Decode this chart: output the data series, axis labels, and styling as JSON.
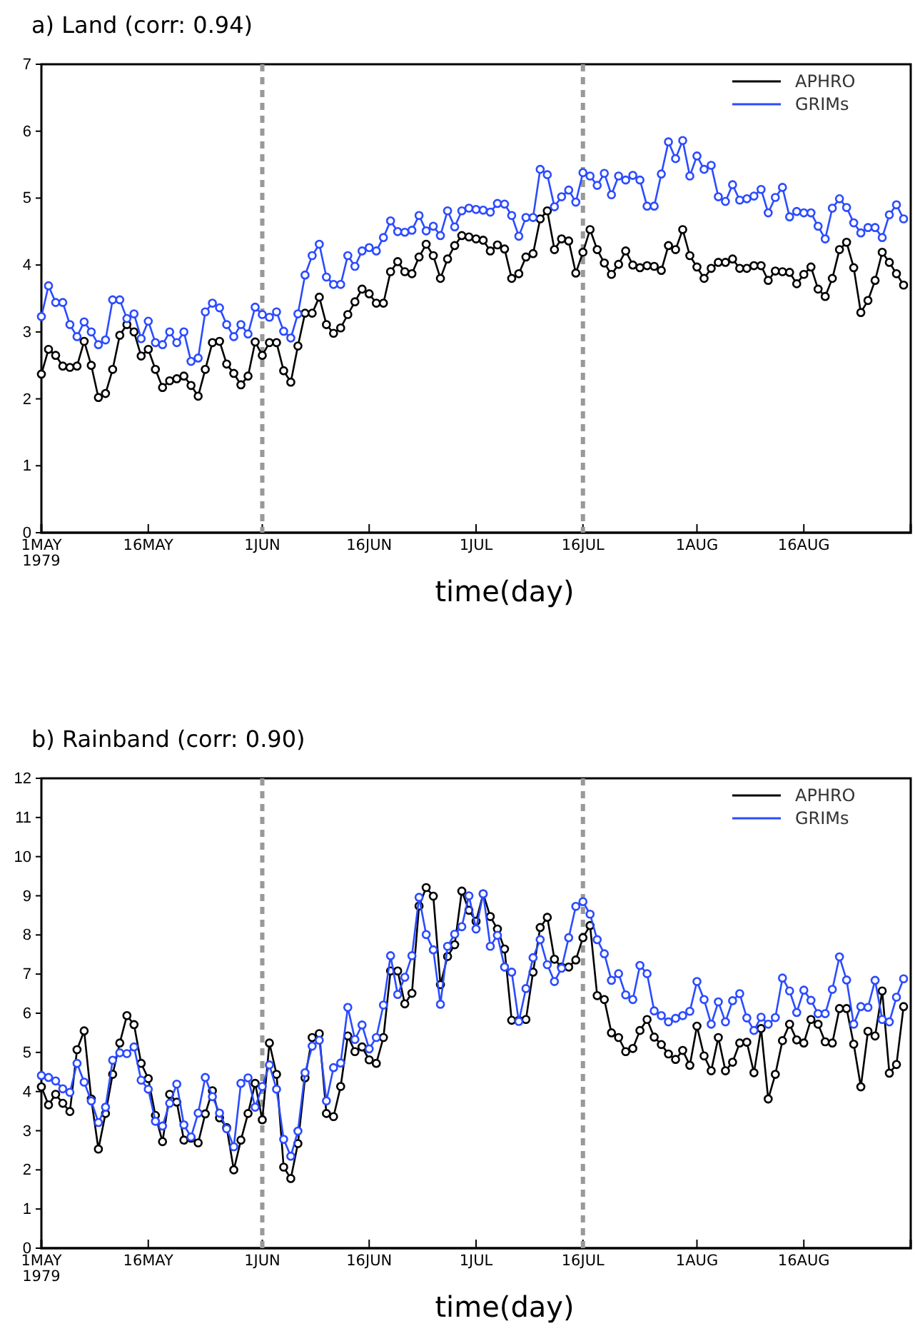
{
  "chart_data": [
    {
      "type": "line",
      "title": "a) Land (corr: 0.94)",
      "xlabel": "time(day)",
      "x": [
        "1979-05-01",
        "1979-05-02",
        "1979-05-03",
        "1979-05-04",
        "1979-05-05",
        "1979-05-06",
        "1979-05-07",
        "1979-05-08",
        "1979-05-09",
        "1979-05-10",
        "1979-05-11",
        "1979-05-12",
        "1979-05-13",
        "1979-05-14",
        "1979-05-15",
        "1979-05-16",
        "1979-05-17",
        "1979-05-18",
        "1979-05-19",
        "1979-05-20",
        "1979-05-21",
        "1979-05-22",
        "1979-05-23",
        "1979-05-24",
        "1979-05-25",
        "1979-05-26",
        "1979-05-27",
        "1979-05-28",
        "1979-05-29",
        "1979-05-30",
        "1979-05-31",
        "1979-06-01",
        "1979-06-02",
        "1979-06-03",
        "1979-06-04",
        "1979-06-05",
        "1979-06-06",
        "1979-06-07",
        "1979-06-08",
        "1979-06-09",
        "1979-06-10",
        "1979-06-11",
        "1979-06-12",
        "1979-06-13",
        "1979-06-14",
        "1979-06-15",
        "1979-06-16",
        "1979-06-17",
        "1979-06-18",
        "1979-06-19",
        "1979-06-20",
        "1979-06-21",
        "1979-06-22",
        "1979-06-23",
        "1979-06-24",
        "1979-06-25",
        "1979-06-26",
        "1979-06-27",
        "1979-06-28",
        "1979-06-29",
        "1979-06-30",
        "1979-07-01",
        "1979-07-02",
        "1979-07-03",
        "1979-07-04",
        "1979-07-05",
        "1979-07-06",
        "1979-07-07",
        "1979-07-08",
        "1979-07-09",
        "1979-07-10",
        "1979-07-11",
        "1979-07-12",
        "1979-07-13",
        "1979-07-14",
        "1979-07-15",
        "1979-07-16",
        "1979-07-17",
        "1979-07-18",
        "1979-07-19",
        "1979-07-20",
        "1979-07-21",
        "1979-07-22",
        "1979-07-23",
        "1979-07-24",
        "1979-07-25",
        "1979-07-26",
        "1979-07-27",
        "1979-07-28",
        "1979-07-29",
        "1979-07-30",
        "1979-07-31",
        "1979-08-01",
        "1979-08-02",
        "1979-08-03",
        "1979-08-04",
        "1979-08-05",
        "1979-08-06",
        "1979-08-07",
        "1979-08-08",
        "1979-08-09",
        "1979-08-10",
        "1979-08-11",
        "1979-08-12",
        "1979-08-13",
        "1979-08-14",
        "1979-08-15",
        "1979-08-16",
        "1979-08-17",
        "1979-08-18",
        "1979-08-19",
        "1979-08-20",
        "1979-08-21",
        "1979-08-22",
        "1979-08-23",
        "1979-08-24",
        "1979-08-25",
        "1979-08-26",
        "1979-08-27",
        "1979-08-28",
        "1979-08-29",
        "1979-08-30"
      ],
      "xlim": [
        "1979-05-01",
        "1979-08-31"
      ],
      "xticks": [
        {
          "value": "1979-05-01",
          "label": "1MAY\n1979"
        },
        {
          "value": "1979-05-16",
          "label": "16MAY"
        },
        {
          "value": "1979-06-01",
          "label": "1JUN"
        },
        {
          "value": "1979-06-16",
          "label": "16JUN"
        },
        {
          "value": "1979-07-01",
          "label": "1JUL"
        },
        {
          "value": "1979-07-16",
          "label": "16JUL"
        },
        {
          "value": "1979-08-01",
          "label": "1AUG"
        },
        {
          "value": "1979-08-16",
          "label": "16AUG"
        }
      ],
      "ylim": [
        0,
        7
      ],
      "yticks": [
        0,
        1,
        2,
        3,
        4,
        5,
        6,
        7
      ],
      "marker": "circle",
      "line_style": "solid",
      "legend": "top right",
      "ref_lines": [
        {
          "axis": "x",
          "value": "1979-06-01",
          "color": "#999999",
          "line_style": "dashed"
        },
        {
          "axis": "x",
          "value": "1979-07-16",
          "color": "#999999",
          "line_style": "dashed"
        }
      ],
      "series": [
        {
          "name": "APHRO",
          "color": "#000000",
          "values": [
            2.37,
            2.74,
            2.65,
            2.49,
            2.47,
            2.49,
            2.86,
            2.5,
            2.02,
            2.08,
            2.44,
            2.95,
            3.11,
            3.0,
            2.64,
            2.74,
            2.44,
            2.17,
            2.27,
            2.3,
            2.34,
            2.2,
            2.04,
            2.44,
            2.84,
            2.86,
            2.52,
            2.38,
            2.21,
            2.34,
            2.85,
            2.65,
            2.84,
            2.84,
            2.42,
            2.25,
            2.79,
            3.28,
            3.28,
            3.52,
            3.11,
            2.98,
            3.06,
            3.26,
            3.45,
            3.64,
            3.57,
            3.43,
            3.43,
            3.9,
            4.05,
            3.9,
            3.87,
            4.12,
            4.31,
            4.14,
            3.8,
            4.09,
            4.29,
            4.44,
            4.42,
            4.39,
            4.37,
            4.21,
            4.3,
            4.24,
            3.8,
            3.87,
            4.12,
            4.17,
            4.69,
            4.81,
            4.23,
            4.39,
            4.36,
            3.88,
            4.19,
            4.53,
            4.23,
            4.03,
            3.86,
            4.01,
            4.21,
            4.0,
            3.96,
            3.99,
            3.98,
            3.92,
            4.29,
            4.23,
            4.53,
            4.14,
            3.97,
            3.8,
            3.95,
            4.04,
            4.04,
            4.09,
            3.95,
            3.95,
            3.99,
            3.99,
            3.77,
            3.91,
            3.9,
            3.89,
            3.72,
            3.86,
            3.97,
            3.64,
            3.53,
            3.8,
            4.23,
            4.34,
            3.96,
            3.29,
            3.47,
            3.77,
            4.19,
            4.04,
            3.87,
            3.7
          ]
        },
        {
          "name": "GRIMs",
          "color": "#2b4bff",
          "values": [
            3.23,
            3.69,
            3.44,
            3.44,
            3.11,
            2.93,
            3.15,
            3.0,
            2.81,
            2.88,
            3.48,
            3.48,
            3.2,
            3.27,
            2.9,
            3.16,
            2.84,
            2.81,
            3.0,
            2.84,
            3.0,
            2.56,
            2.61,
            3.3,
            3.43,
            3.36,
            3.11,
            2.93,
            3.11,
            2.97,
            3.37,
            3.26,
            3.22,
            3.3,
            3.01,
            2.91,
            3.27,
            3.85,
            4.14,
            4.31,
            3.82,
            3.71,
            3.71,
            4.14,
            3.98,
            4.21,
            4.26,
            4.21,
            4.41,
            4.66,
            4.5,
            4.49,
            4.52,
            4.74,
            4.51,
            4.58,
            4.44,
            4.81,
            4.57,
            4.81,
            4.85,
            4.83,
            4.82,
            4.79,
            4.92,
            4.91,
            4.74,
            4.43,
            4.71,
            4.71,
            5.43,
            5.35,
            4.87,
            5.02,
            5.12,
            4.94,
            5.38,
            5.33,
            5.19,
            5.37,
            5.05,
            5.33,
            5.27,
            5.34,
            5.27,
            4.88,
            4.88,
            5.36,
            5.84,
            5.59,
            5.86,
            5.33,
            5.63,
            5.43,
            5.49,
            5.02,
            4.95,
            5.2,
            4.97,
            4.99,
            5.03,
            5.13,
            4.78,
            5.01,
            5.16,
            4.72,
            4.8,
            4.78,
            4.78,
            4.58,
            4.39,
            4.85,
            4.99,
            4.86,
            4.63,
            4.48,
            4.56,
            4.56,
            4.41,
            4.75,
            4.9,
            4.69
          ]
        }
      ]
    },
    {
      "type": "line",
      "title": "b) Rainband (corr: 0.90)",
      "xlabel": "time(day)",
      "x": [
        "1979-05-01",
        "1979-05-02",
        "1979-05-03",
        "1979-05-04",
        "1979-05-05",
        "1979-05-06",
        "1979-05-07",
        "1979-05-08",
        "1979-05-09",
        "1979-05-10",
        "1979-05-11",
        "1979-05-12",
        "1979-05-13",
        "1979-05-14",
        "1979-05-15",
        "1979-05-16",
        "1979-05-17",
        "1979-05-18",
        "1979-05-19",
        "1979-05-20",
        "1979-05-21",
        "1979-05-22",
        "1979-05-23",
        "1979-05-24",
        "1979-05-25",
        "1979-05-26",
        "1979-05-27",
        "1979-05-28",
        "1979-05-29",
        "1979-05-30",
        "1979-05-31",
        "1979-06-01",
        "1979-06-02",
        "1979-06-03",
        "1979-06-04",
        "1979-06-05",
        "1979-06-06",
        "1979-06-07",
        "1979-06-08",
        "1979-06-09",
        "1979-06-10",
        "1979-06-11",
        "1979-06-12",
        "1979-06-13",
        "1979-06-14",
        "1979-06-15",
        "1979-06-16",
        "1979-06-17",
        "1979-06-18",
        "1979-06-19",
        "1979-06-20",
        "1979-06-21",
        "1979-06-22",
        "1979-06-23",
        "1979-06-24",
        "1979-06-25",
        "1979-06-26",
        "1979-06-27",
        "1979-06-28",
        "1979-06-29",
        "1979-06-30",
        "1979-07-01",
        "1979-07-02",
        "1979-07-03",
        "1979-07-04",
        "1979-07-05",
        "1979-07-06",
        "1979-07-07",
        "1979-07-08",
        "1979-07-09",
        "1979-07-10",
        "1979-07-11",
        "1979-07-12",
        "1979-07-13",
        "1979-07-14",
        "1979-07-15",
        "1979-07-16",
        "1979-07-17",
        "1979-07-18",
        "1979-07-19",
        "1979-07-20",
        "1979-07-21",
        "1979-07-22",
        "1979-07-23",
        "1979-07-24",
        "1979-07-25",
        "1979-07-26",
        "1979-07-27",
        "1979-07-28",
        "1979-07-29",
        "1979-07-30",
        "1979-07-31",
        "1979-08-01",
        "1979-08-02",
        "1979-08-03",
        "1979-08-04",
        "1979-08-05",
        "1979-08-06",
        "1979-08-07",
        "1979-08-08",
        "1979-08-09",
        "1979-08-10",
        "1979-08-11",
        "1979-08-12",
        "1979-08-13",
        "1979-08-14",
        "1979-08-15",
        "1979-08-16",
        "1979-08-17",
        "1979-08-18",
        "1979-08-19",
        "1979-08-20",
        "1979-08-21",
        "1979-08-22",
        "1979-08-23",
        "1979-08-24",
        "1979-08-25",
        "1979-08-26",
        "1979-08-27",
        "1979-08-28",
        "1979-08-29",
        "1979-08-30"
      ],
      "xlim": [
        "1979-05-01",
        "1979-08-31"
      ],
      "xticks": [
        {
          "value": "1979-05-01",
          "label": "1MAY\n1979"
        },
        {
          "value": "1979-05-16",
          "label": "16MAY"
        },
        {
          "value": "1979-06-01",
          "label": "1JUN"
        },
        {
          "value": "1979-06-16",
          "label": "16JUN"
        },
        {
          "value": "1979-07-01",
          "label": "1JUL"
        },
        {
          "value": "1979-07-16",
          "label": "16JUL"
        },
        {
          "value": "1979-08-01",
          "label": "1AUG"
        },
        {
          "value": "1979-08-16",
          "label": "16AUG"
        }
      ],
      "ylim": [
        0,
        12
      ],
      "yticks": [
        0,
        1,
        2,
        3,
        4,
        5,
        6,
        7,
        8,
        9,
        10,
        11,
        12
      ],
      "marker": "circle",
      "line_style": "solid",
      "legend": "top right",
      "ref_lines": [
        {
          "axis": "x",
          "value": "1979-06-01",
          "color": "#999999",
          "line_style": "dashed"
        },
        {
          "axis": "x",
          "value": "1979-07-16",
          "color": "#999999",
          "line_style": "dashed"
        }
      ],
      "series": [
        {
          "name": "APHRO",
          "color": "#000000",
          "values": [
            4.12,
            3.66,
            3.93,
            3.7,
            3.49,
            5.07,
            5.55,
            3.81,
            2.53,
            3.44,
            4.44,
            5.24,
            5.94,
            5.71,
            4.72,
            4.33,
            3.39,
            2.72,
            3.93,
            3.73,
            2.76,
            2.81,
            2.69,
            3.43,
            4.02,
            3.33,
            3.08,
            2.0,
            2.76,
            3.44,
            4.21,
            3.28,
            5.24,
            4.44,
            2.07,
            1.78,
            2.67,
            4.35,
            5.38,
            5.48,
            3.44,
            3.36,
            4.13,
            5.42,
            5.02,
            5.14,
            4.81,
            4.72,
            5.38,
            7.08,
            7.08,
            6.24,
            6.51,
            8.74,
            9.21,
            8.99,
            6.73,
            7.45,
            7.75,
            9.12,
            8.63,
            8.35,
            9.05,
            8.47,
            8.15,
            7.64,
            5.82,
            5.82,
            5.84,
            7.05,
            8.19,
            8.45,
            7.38,
            7.18,
            7.18,
            7.36,
            7.93,
            8.24,
            6.45,
            6.35,
            5.5,
            5.38,
            5.02,
            5.1,
            5.56,
            5.84,
            5.39,
            5.2,
            4.96,
            4.82,
            5.05,
            4.67,
            5.67,
            4.91,
            4.53,
            5.38,
            4.53,
            4.75,
            5.24,
            5.26,
            4.48,
            5.61,
            3.81,
            4.44,
            5.3,
            5.72,
            5.32,
            5.24,
            5.84,
            5.72,
            5.27,
            5.24,
            6.12,
            6.12,
            5.21,
            4.12,
            5.54,
            5.42,
            6.57,
            4.47,
            4.69,
            6.17
          ]
        },
        {
          "name": "GRIMs",
          "color": "#2b4bff",
          "values": [
            4.41,
            4.36,
            4.27,
            4.07,
            3.98,
            4.72,
            4.24,
            3.76,
            3.21,
            3.6,
            4.8,
            4.99,
            4.97,
            5.14,
            4.29,
            4.06,
            3.24,
            3.12,
            3.7,
            4.19,
            3.15,
            2.84,
            3.45,
            4.36,
            3.87,
            3.45,
            3.05,
            2.59,
            4.21,
            4.35,
            3.6,
            4.13,
            4.68,
            4.06,
            2.78,
            2.35,
            2.99,
            4.48,
            5.16,
            5.31,
            3.76,
            4.61,
            4.73,
            6.15,
            5.33,
            5.7,
            5.09,
            5.38,
            6.21,
            7.47,
            6.48,
            6.92,
            7.47,
            8.96,
            8.01,
            7.62,
            6.23,
            7.71,
            8.02,
            8.21,
            9.0,
            8.15,
            9.05,
            7.71,
            7.99,
            7.18,
            7.05,
            5.79,
            6.63,
            7.42,
            7.88,
            7.24,
            6.81,
            7.15,
            7.93,
            8.73,
            8.85,
            8.53,
            7.88,
            7.52,
            6.84,
            7.01,
            6.47,
            6.35,
            7.22,
            7.01,
            6.06,
            5.94,
            5.78,
            5.87,
            5.94,
            6.05,
            6.81,
            6.35,
            5.72,
            6.29,
            5.78,
            6.32,
            6.5,
            5.88,
            5.56,
            5.9,
            5.72,
            5.89,
            6.9,
            6.57,
            6.02,
            6.59,
            6.33,
            5.99,
            5.99,
            6.61,
            7.44,
            6.85,
            5.72,
            6.17,
            6.15,
            6.84,
            5.84,
            5.78,
            6.41,
            6.88
          ]
        }
      ]
    }
  ]
}
